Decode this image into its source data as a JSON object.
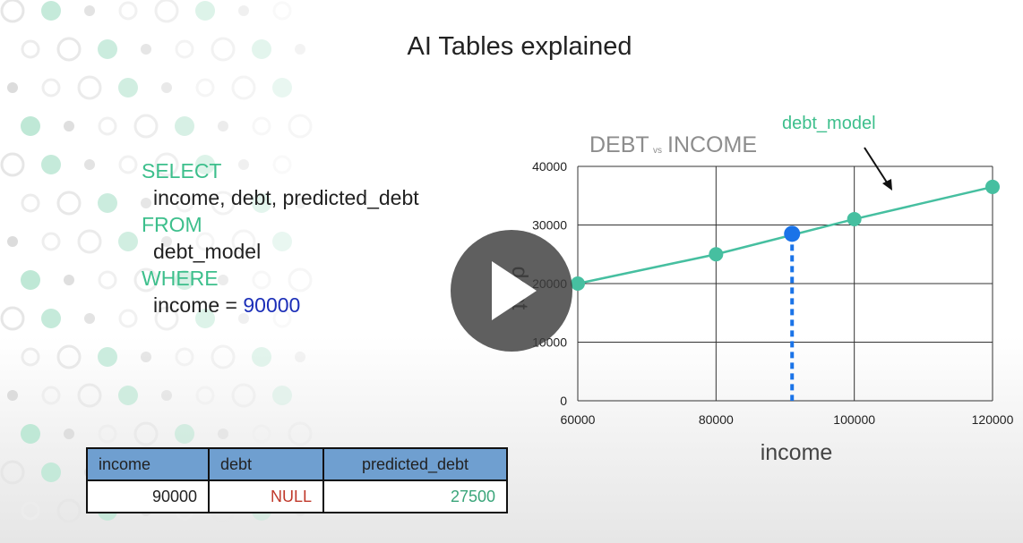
{
  "slide": {
    "title": "AI Tables explained"
  },
  "sql": {
    "select_kw": "SELECT",
    "select_cols": "income, debt, predicted_debt",
    "from_kw": "FROM",
    "from_table": "debt_model",
    "where_kw": "WHERE",
    "where_col": "income = ",
    "where_val": "90000"
  },
  "chart_data": {
    "type": "line",
    "title_left": "DEBT",
    "title_mid": "vs",
    "title_right": "INCOME",
    "xlabel": "income",
    "ylabel": "debt",
    "x_ticks": [
      "60000",
      "80000",
      "100000",
      "120000"
    ],
    "y_ticks": [
      "0",
      "10000",
      "20000",
      "30000",
      "40000"
    ],
    "xlim": [
      60000,
      120000
    ],
    "ylim": [
      0,
      40000
    ],
    "grid": true,
    "series": [
      {
        "name": "debt_model",
        "x": [
          60000,
          80000,
          100000,
          120000
        ],
        "y": [
          20000,
          25000,
          31000,
          36500
        ],
        "color": "#46bfa0"
      }
    ],
    "highlight_point": {
      "x": 91000,
      "y": 28500,
      "color": "#1a73e8"
    }
  },
  "result_table": {
    "headers": [
      "income",
      "debt",
      "predicted_debt"
    ],
    "row": [
      "90000",
      "NULL",
      "27500"
    ]
  },
  "colors": {
    "accent_green": "#3dbf8c",
    "number_blue": "#1c2fb8",
    "header_blue": "#6f9fd0",
    "null_red": "#c0392b"
  },
  "player": {
    "play_icon": "play-icon"
  }
}
